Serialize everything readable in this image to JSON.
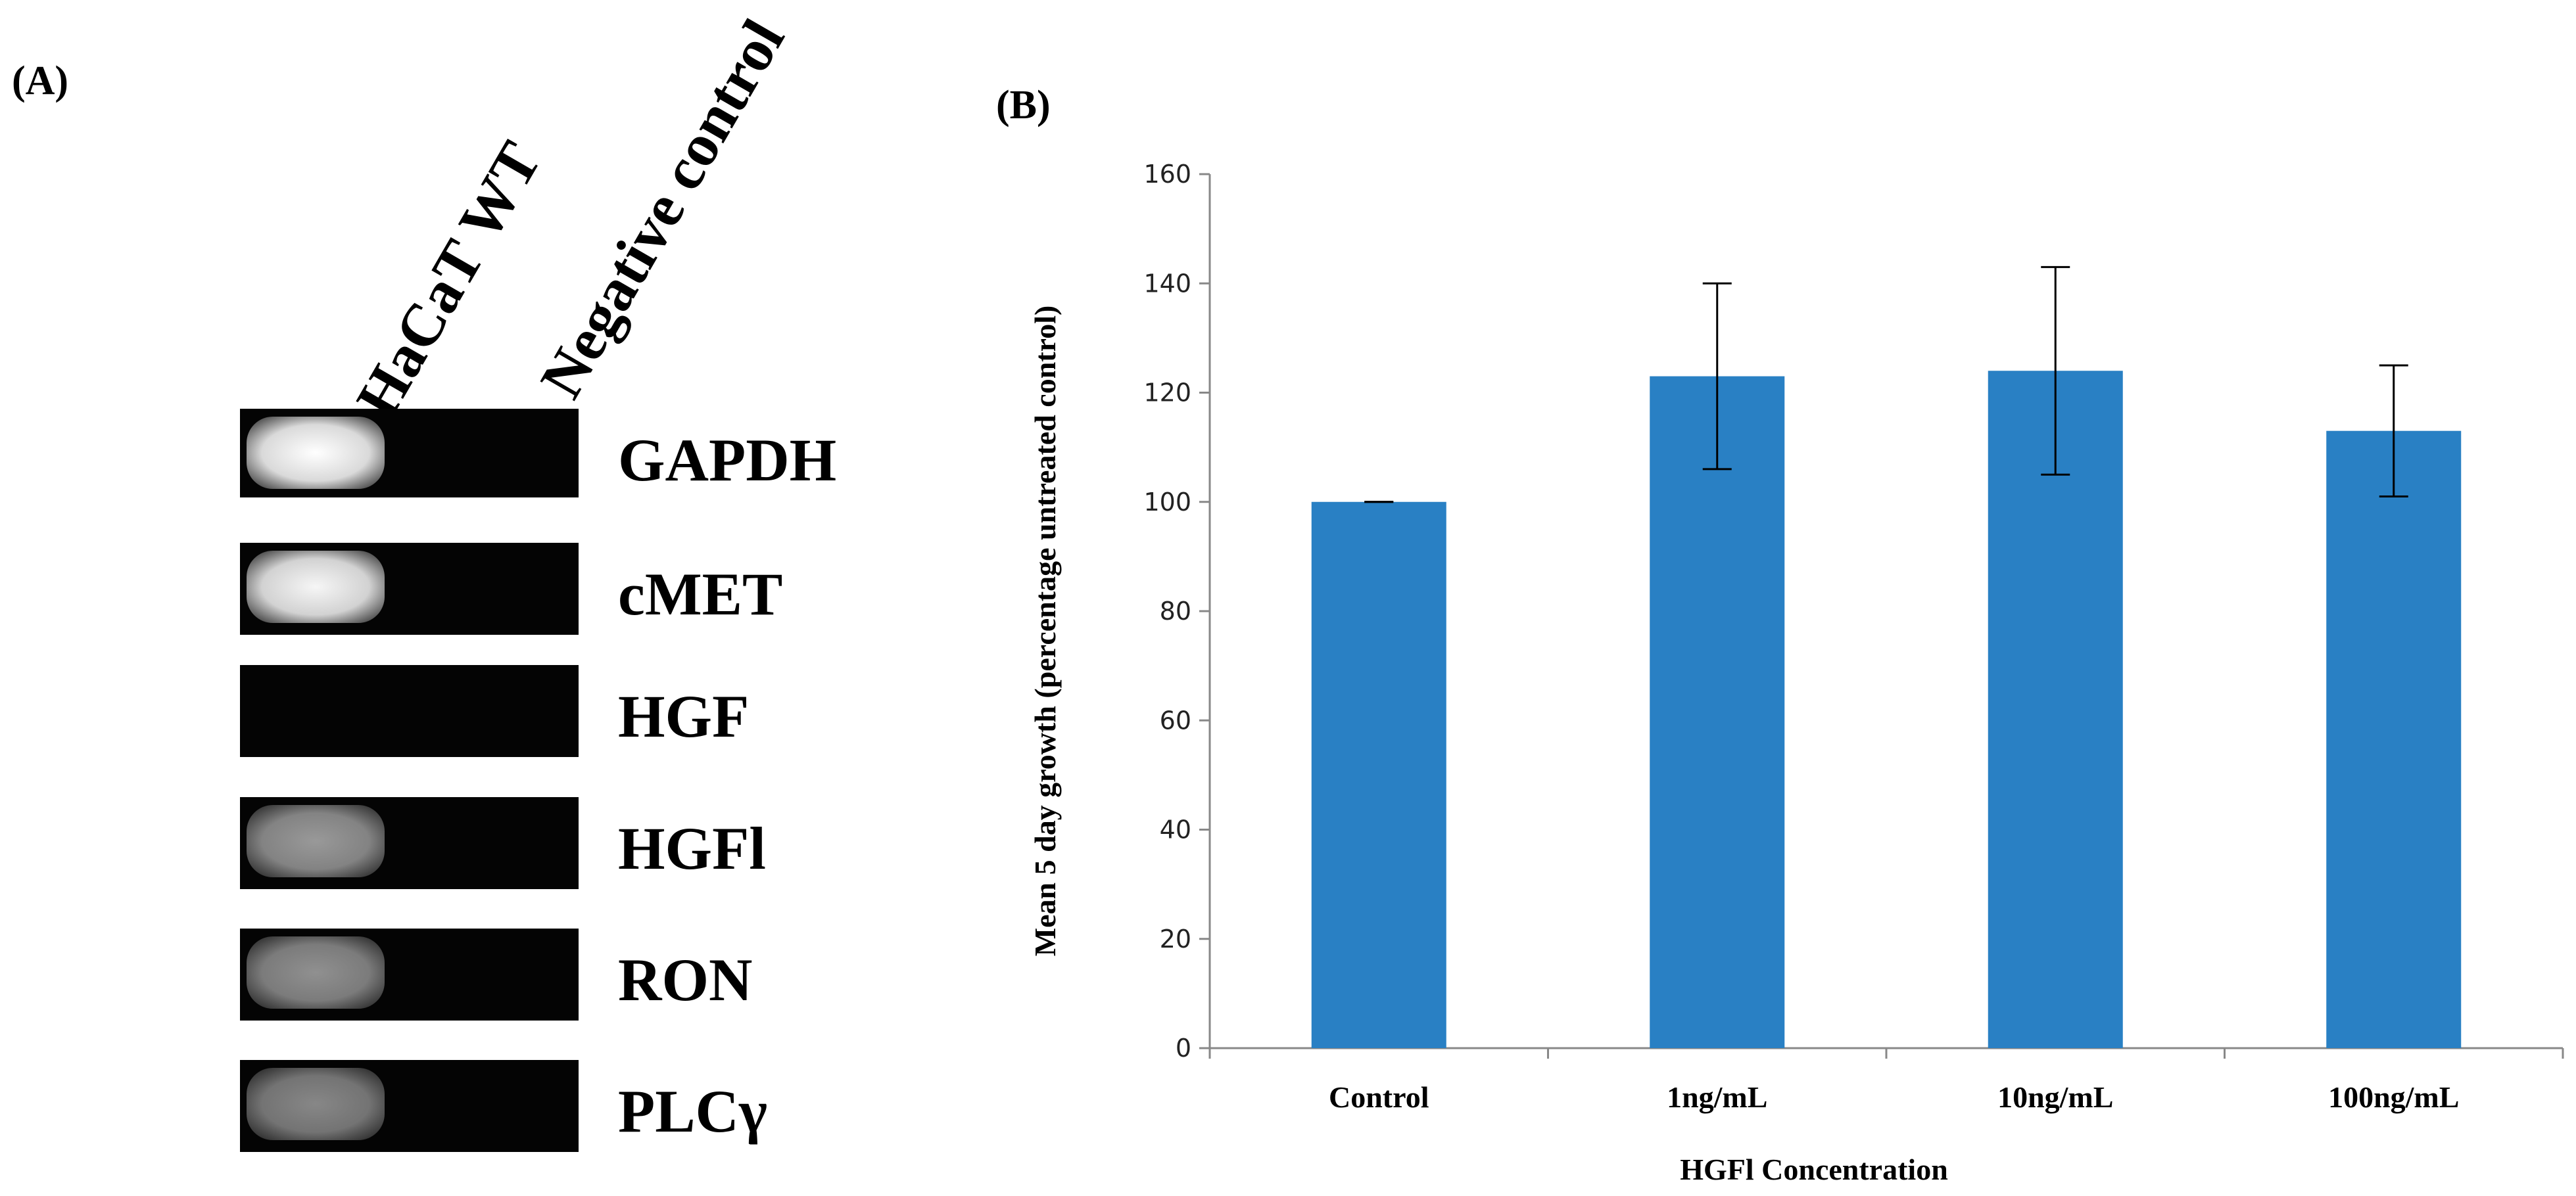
{
  "panel_a": {
    "label": "(A)",
    "lane_headers": [
      "HaCaT WT",
      "Negative control"
    ],
    "gel_rows": [
      {
        "gene": "GAPDH",
        "intensity": 1.0
      },
      {
        "gene": "cMET",
        "intensity": 0.95
      },
      {
        "gene": "HGF",
        "intensity": 0.0
      },
      {
        "gene": "HGFl",
        "intensity": 0.45
      },
      {
        "gene": "RON",
        "intensity": 0.4
      },
      {
        "gene": "PLCγ",
        "intensity": 0.35
      }
    ]
  },
  "panel_b": {
    "label": "(B)"
  },
  "chart_data": {
    "type": "bar",
    "categories": [
      "Control",
      "1ng/mL",
      "10ng/mL",
      "100ng/mL"
    ],
    "values": [
      100,
      123,
      124,
      113
    ],
    "error": [
      0,
      17,
      19,
      12
    ],
    "xlabel": "HGFl Concentration",
    "ylabel": "Mean 5 day growth (percentage untreated control)",
    "ylim": [
      0,
      160
    ],
    "yticks": [
      0,
      20,
      40,
      60,
      80,
      100,
      120,
      140,
      160
    ],
    "bar_color": "#2980c4"
  }
}
